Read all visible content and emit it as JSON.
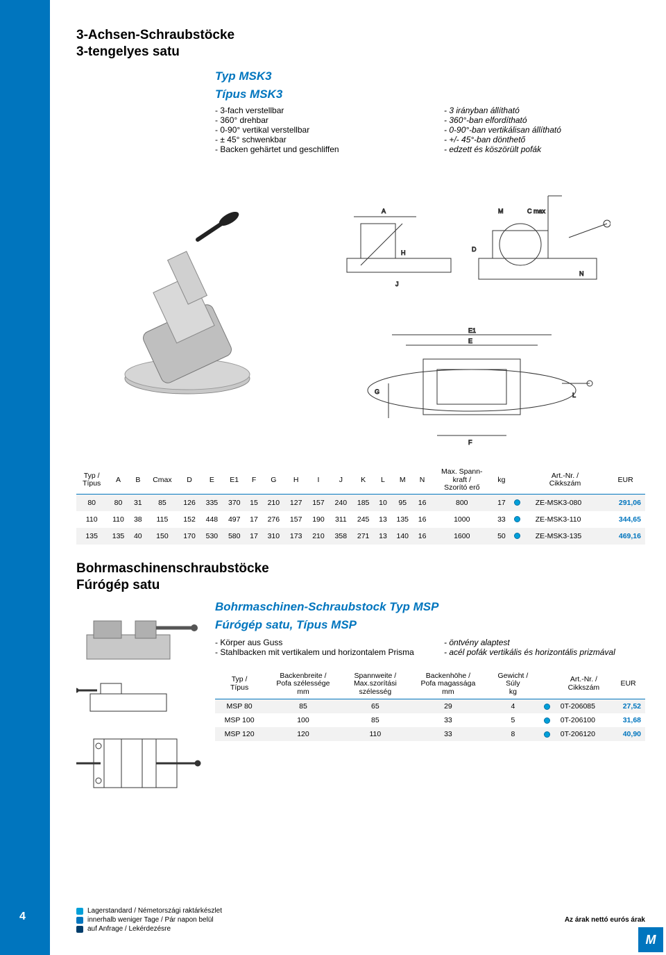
{
  "colors": {
    "brand_blue": "#0075be",
    "light_row": "#f2f2f2",
    "dot_fill": "#00a0d9"
  },
  "page": {
    "number": "4",
    "logo_text": "M"
  },
  "section1": {
    "heading_de": "3-Achsen-Schraubstöcke",
    "heading_hu": "3-tengelyes satu",
    "subheading_de": "Typ MSK3",
    "subheading_hu": "Típus MSK3",
    "features_de": [
      "3-fach verstellbar",
      "360° drehbar",
      "0-90° vertikal verstellbar",
      "± 45° schwenkbar",
      "Backen gehärtet und geschliffen"
    ],
    "features_hu": [
      "3 irányban állítható",
      "360°-ban elfordítható",
      "0-90°-ban vertikálisan állítható",
      "+/- 45°-ban dönthető",
      "edzett és köszörült pofák"
    ],
    "diagram_labels": [
      "A",
      "M",
      "C max",
      "D",
      "H",
      "J",
      "N",
      "E",
      "E1",
      "F",
      "G",
      "L"
    ],
    "table": {
      "headers": [
        "Typ /\nTípus",
        "A",
        "B",
        "Cmax",
        "D",
        "E",
        "E1",
        "F",
        "G",
        "H",
        "I",
        "J",
        "K",
        "L",
        "M",
        "N",
        "Max. Spann-\nkraft /\nSzorító erő",
        "kg",
        "",
        "Art.-Nr. /\nCikkszám",
        "EUR"
      ],
      "rows": [
        [
          "80",
          "80",
          "31",
          "85",
          "126",
          "335",
          "370",
          "15",
          "210",
          "127",
          "157",
          "240",
          "185",
          "10",
          "95",
          "16",
          "800",
          "17",
          "●",
          "ZE-MSK3-080",
          "291,06"
        ],
        [
          "110",
          "110",
          "38",
          "115",
          "152",
          "448",
          "497",
          "17",
          "276",
          "157",
          "190",
          "311",
          "245",
          "13",
          "135",
          "16",
          "1000",
          "33",
          "●",
          "ZE-MSK3-110",
          "344,65"
        ],
        [
          "135",
          "135",
          "40",
          "150",
          "170",
          "530",
          "580",
          "17",
          "310",
          "173",
          "210",
          "358",
          "271",
          "13",
          "140",
          "16",
          "1600",
          "50",
          "●",
          "ZE-MSK3-135",
          "469,16"
        ]
      ]
    }
  },
  "section2": {
    "heading_de": "Bohrmaschinenschraubstöcke",
    "heading_hu": "Fúrógép satu",
    "subheading_de": "Bohrmaschinen-Schraubstock Typ MSP",
    "subheading_hu": "Fúrógép satu, Típus MSP",
    "features_de": [
      "Körper aus Guss",
      "Stahlbacken mit vertikalem und horizontalem Prisma"
    ],
    "features_hu": [
      "öntvény alaptest",
      "acél pofák vertikális és horizontális prizmával"
    ],
    "table": {
      "headers": [
        "Typ /\nTípus",
        "Backenbreite /\nPofa szélessége\nmm",
        "Spannweite /\nMax.szorítási\nszélesség",
        "Backenhöhe /\nPofa magassága\nmm",
        "Gewicht /\nSúly\nkg",
        "",
        "Art.-Nr. /\nCikkszám",
        "EUR"
      ],
      "rows": [
        [
          "MSP 80",
          "85",
          "65",
          "29",
          "4",
          "●",
          "0T-206085",
          "27,52"
        ],
        [
          "MSP 100",
          "100",
          "85",
          "33",
          "5",
          "●",
          "0T-206100",
          "31,68"
        ],
        [
          "MSP 120",
          "120",
          "110",
          "33",
          "8",
          "●",
          "0T-206120",
          "40,90"
        ]
      ]
    }
  },
  "legend": {
    "l1": "Lagerstandard / Németországi raktárkészlet",
    "l2": "innerhalb weniger Tage / Pár napon belül",
    "l3": "auf Anfrage / Lekérdezésre",
    "price_note": "Az árak nettó eurós árak"
  }
}
